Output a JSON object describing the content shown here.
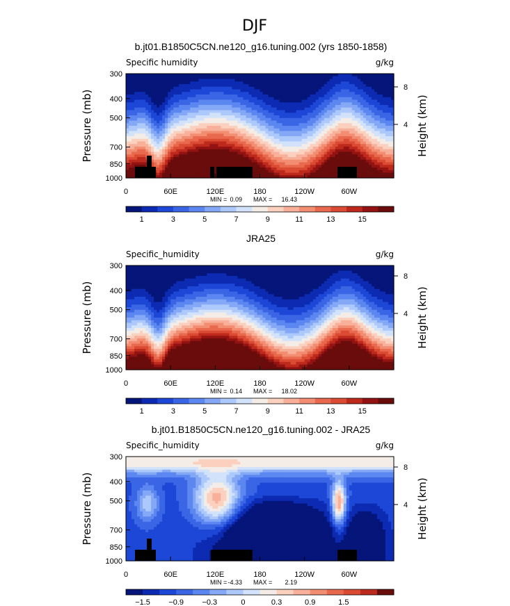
{
  "figure": {
    "title": "DJF"
  },
  "chart_data": [
    {
      "type": "heatmap",
      "title": "b.jt01.B1850C5CN.ne120_g16.tuning.002 (yrs 1850-1858)",
      "left_label": "Specific humidity",
      "units": "g/kg",
      "ylabel": "Pressure (mb)",
      "y2label": "Height (km)",
      "x_ticks": [
        "0",
        "60E",
        "120E",
        "180",
        "120W",
        "60W"
      ],
      "y_ticks": [
        "300",
        "400",
        "500",
        "700",
        "850",
        "1000"
      ],
      "y2_ticks": [
        "8",
        "4"
      ],
      "min_label": "MIN =",
      "min_value": "0.09",
      "max_label": "MAX =",
      "max_value": "16.43",
      "colorbar_labels": [
        "1",
        "3",
        "5",
        "7",
        "9",
        "11",
        "13",
        "15"
      ],
      "colorbar_colors": [
        "#05157a",
        "#0c2bb2",
        "#1d47d6",
        "#3a66e6",
        "#5d87f0",
        "#84a8f6",
        "#adc8fa",
        "#d2e2fb",
        "#f4ece6",
        "#fbd0bf",
        "#f8b09a",
        "#f28d72",
        "#e9694f",
        "#db4a33",
        "#bd2a1d",
        "#931212",
        "#6a0c0c"
      ],
      "ylim": [
        1000,
        300
      ],
      "xlim": [
        0,
        360
      ]
    },
    {
      "type": "heatmap",
      "title": "JRA25",
      "left_label": "Specific_humidity",
      "units": "g/kg",
      "ylabel": "Pressure (mb)",
      "y2label": "Height (km)",
      "x_ticks": [
        "0",
        "60E",
        "120E",
        "180",
        "120W",
        "60W"
      ],
      "y_ticks": [
        "300",
        "400",
        "500",
        "700",
        "850",
        "1000"
      ],
      "y2_ticks": [
        "8",
        "4"
      ],
      "min_label": "MIN =",
      "min_value": "0.14",
      "max_label": "MAX =",
      "max_value": "18.02",
      "colorbar_labels": [
        "1",
        "3",
        "5",
        "7",
        "9",
        "11",
        "13",
        "15"
      ],
      "colorbar_colors": [
        "#05157a",
        "#0c2bb2",
        "#1d47d6",
        "#3a66e6",
        "#5d87f0",
        "#84a8f6",
        "#adc8fa",
        "#d2e2fb",
        "#f4ece6",
        "#fbd0bf",
        "#f8b09a",
        "#f28d72",
        "#e9694f",
        "#db4a33",
        "#bd2a1d",
        "#931212",
        "#6a0c0c"
      ],
      "ylim": [
        1000,
        300
      ],
      "xlim": [
        0,
        360
      ]
    },
    {
      "type": "heatmap",
      "title": "b.jt01.B1850C5CN.ne120_g16.tuning.002 - JRA25",
      "left_label": "Specific_humidity",
      "units": "g/kg",
      "ylabel": "Pressure (mb)",
      "y2label": "Height (km)",
      "x_ticks": [
        "0",
        "60E",
        "120E",
        "180",
        "120W",
        "60W"
      ],
      "y_ticks": [
        "300",
        "400",
        "500",
        "700",
        "850",
        "1000"
      ],
      "y2_ticks": [
        "8",
        "4"
      ],
      "min_label": "MIN =",
      "min_value": "-4.33",
      "max_label": "MAX =",
      "max_value": "2.19",
      "colorbar_labels": [
        "−1.5",
        "−0.9",
        "−0.3",
        "0",
        "0.3",
        "0.9",
        "1.5"
      ],
      "colorbar_colors": [
        "#05157a",
        "#0c2bb2",
        "#1d47d6",
        "#3a66e6",
        "#5d87f0",
        "#84a8f6",
        "#adc8fa",
        "#d2e2fb",
        "#f4ece6",
        "#fbd0bf",
        "#f8b09a",
        "#f28d72",
        "#e9694f",
        "#db4a33",
        "#bd2a1d",
        "#6a0c0c"
      ],
      "ylim": [
        1000,
        300
      ],
      "xlim": [
        0,
        360
      ]
    }
  ]
}
